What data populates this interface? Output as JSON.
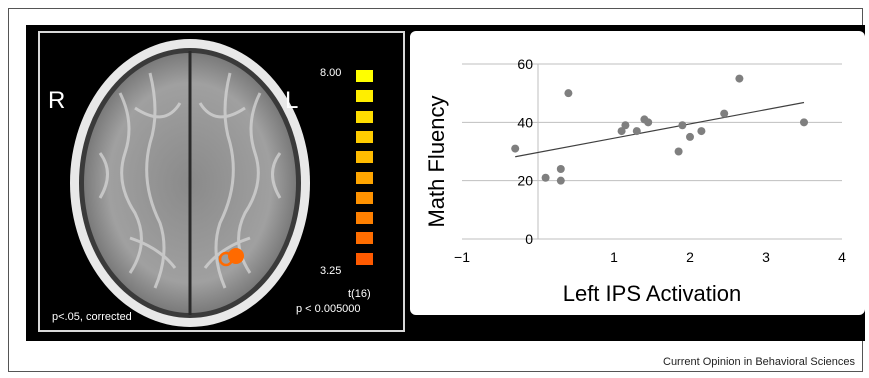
{
  "brain_panel": {
    "left_label": "R",
    "right_label": "L",
    "threshold_note": "p<.05, corrected",
    "colorbar": {
      "max_label": "8.00",
      "min_label": "3.25",
      "stat_label": "t(16)",
      "p_label": "p < 0.005000",
      "colors": [
        "#ffff00",
        "#ffee00",
        "#ffdd00",
        "#ffcc00",
        "#ffbb00",
        "#ffa500",
        "#ff9200",
        "#ff8000",
        "#ff6d00",
        "#ff5a00"
      ]
    },
    "activation_color": "#ff6a00"
  },
  "chart_data": {
    "type": "scatter",
    "xlabel": "Left IPS Activation",
    "ylabel": "Math Fluency",
    "xlim": [
      -1,
      4
    ],
    "ylim": [
      0,
      60
    ],
    "xticks": [
      "−1",
      "1",
      "2",
      "3",
      "4"
    ],
    "yticks": [
      "0",
      "20",
      "40",
      "60"
    ],
    "x_tick_values": [
      -1,
      1,
      2,
      3,
      4
    ],
    "y_tick_values": [
      0,
      20,
      40,
      60
    ],
    "grid": "horizontal",
    "points": [
      {
        "x": -0.3,
        "y": 31
      },
      {
        "x": 0.1,
        "y": 21
      },
      {
        "x": 0.3,
        "y": 24
      },
      {
        "x": 0.3,
        "y": 20
      },
      {
        "x": 0.4,
        "y": 50
      },
      {
        "x": 1.1,
        "y": 37
      },
      {
        "x": 1.15,
        "y": 39
      },
      {
        "x": 1.3,
        "y": 37
      },
      {
        "x": 1.4,
        "y": 41
      },
      {
        "x": 1.45,
        "y": 40
      },
      {
        "x": 1.85,
        "y": 30
      },
      {
        "x": 1.9,
        "y": 39
      },
      {
        "x": 2.0,
        "y": 35
      },
      {
        "x": 2.15,
        "y": 37
      },
      {
        "x": 2.45,
        "y": 43
      },
      {
        "x": 2.65,
        "y": 55
      },
      {
        "x": 3.5,
        "y": 40
      }
    ],
    "trendline": {
      "x": [
        -0.3,
        3.5
      ],
      "y": [
        28.2,
        46.8
      ]
    },
    "point_color": "#7f7f7f",
    "line_color": "#404040"
  },
  "source": "Current Opinion in Behavioral Sciences"
}
